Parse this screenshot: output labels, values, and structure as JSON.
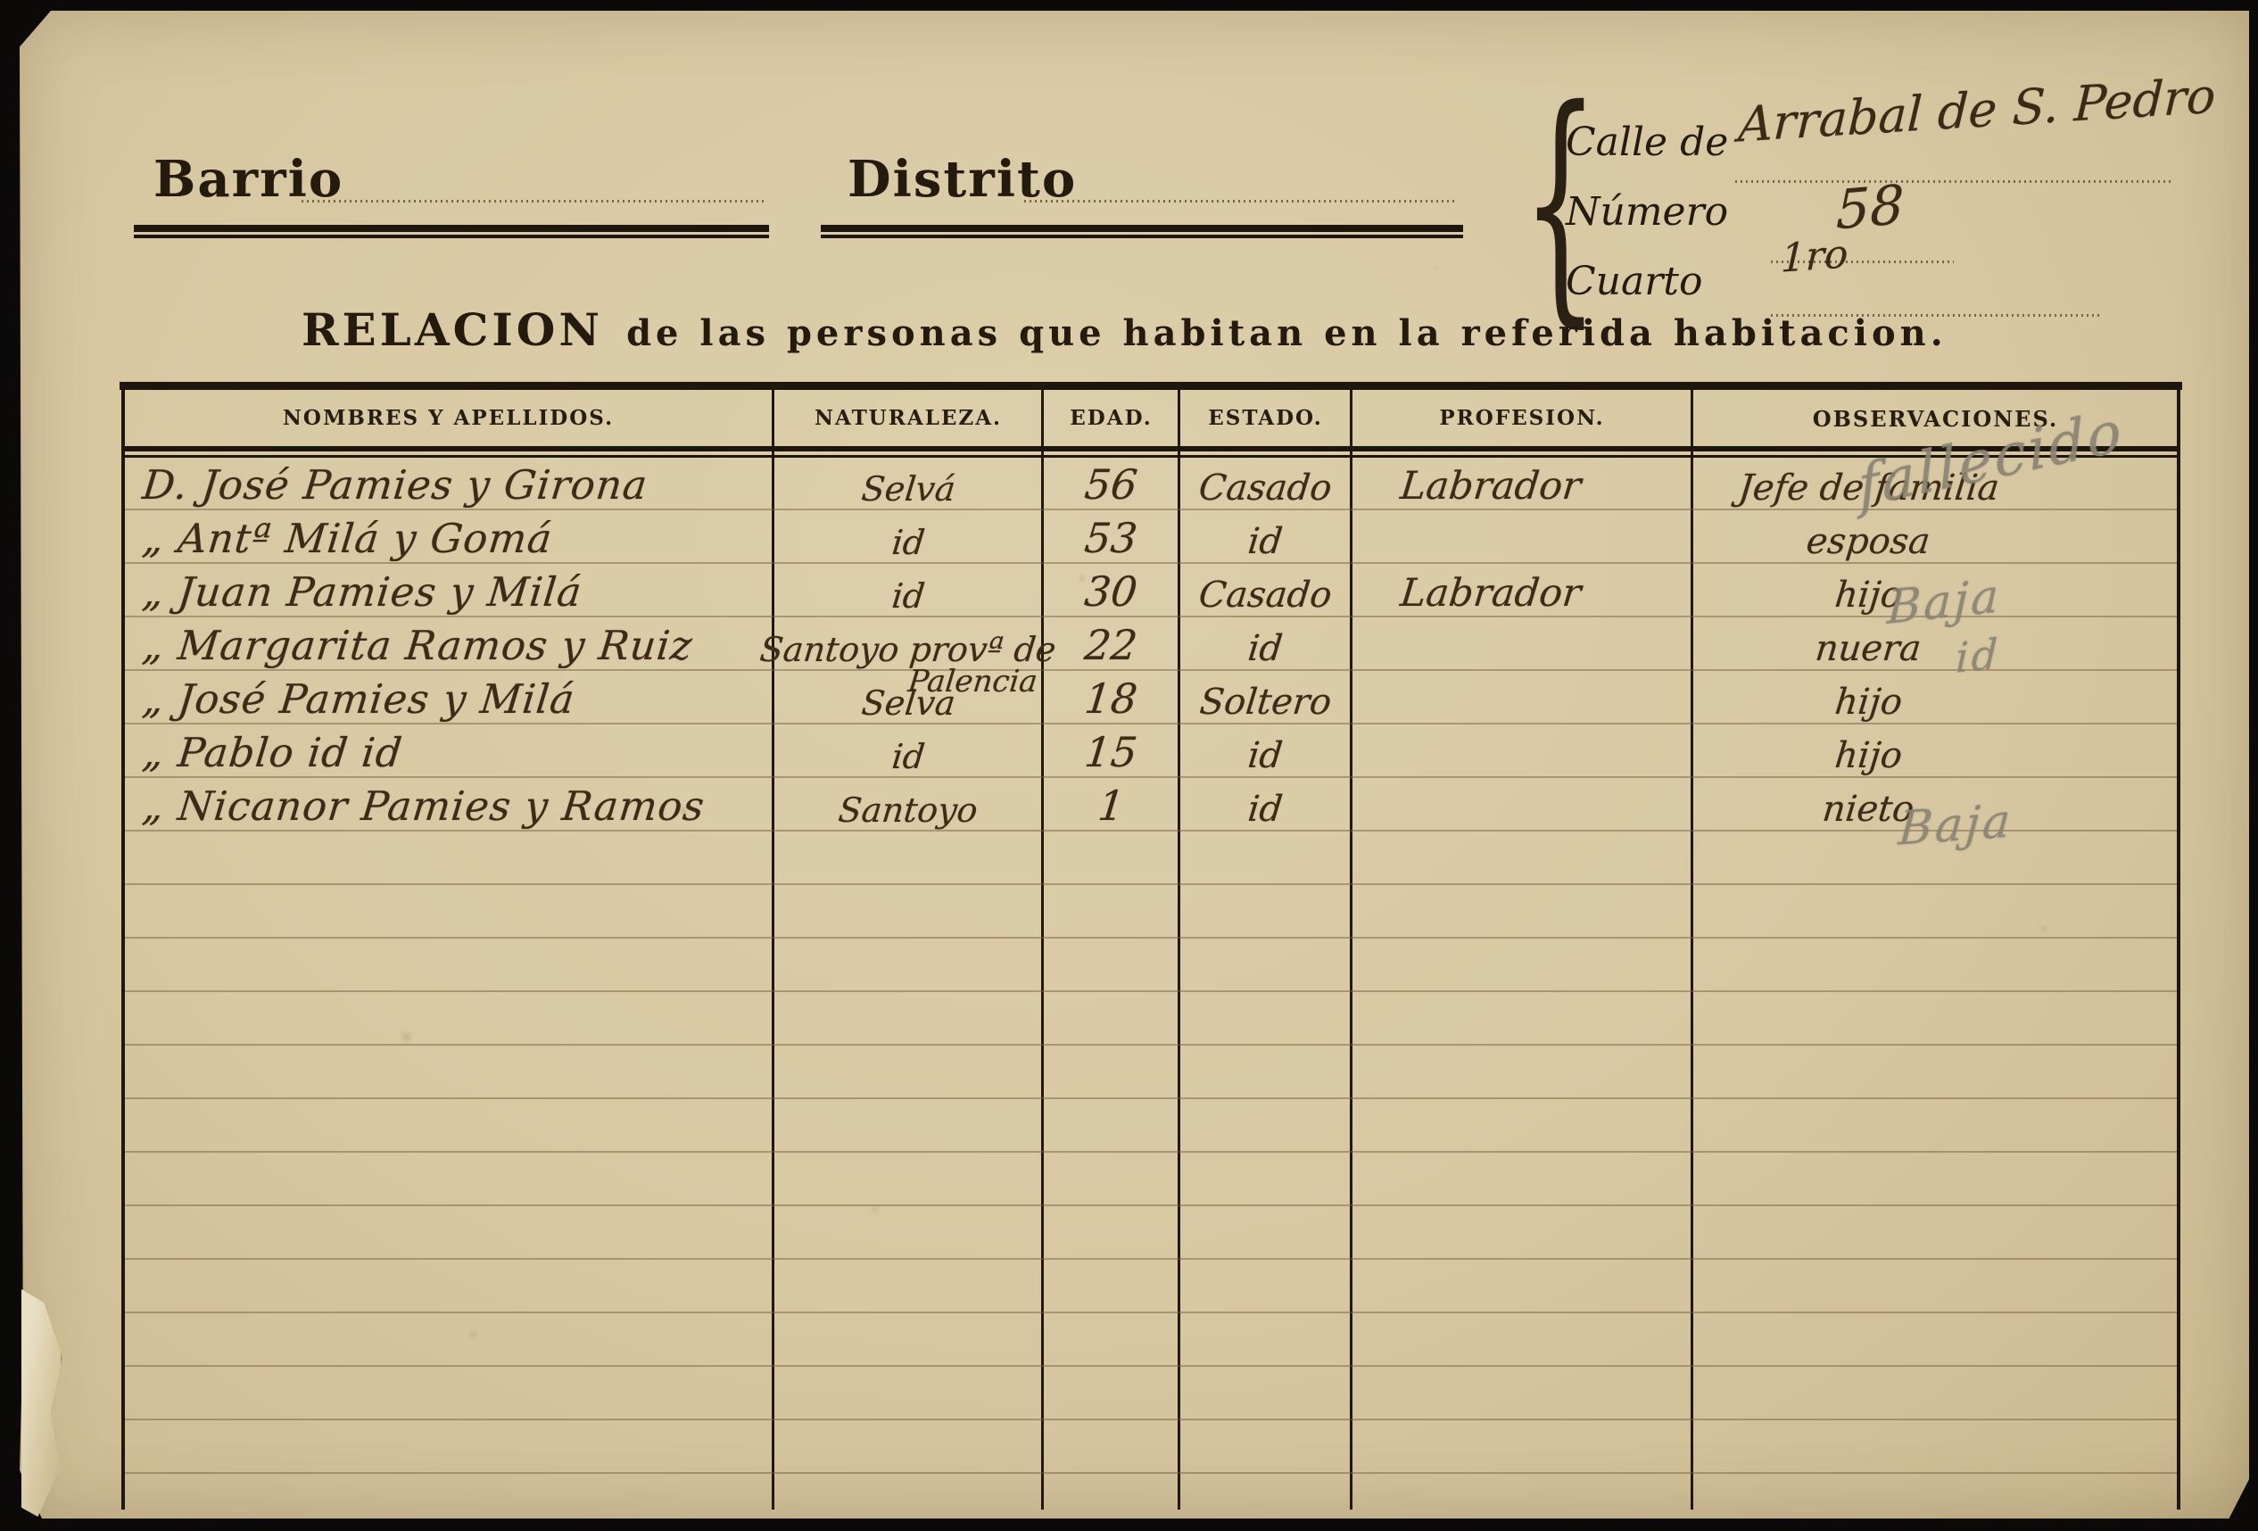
{
  "header": {
    "barrio_label": "Barrio",
    "distrito_label": "Distrito",
    "address": {
      "calle_label": "Calle de",
      "calle_value": "Arrabal de S. Pedro",
      "numero_label": "Número",
      "numero_value": "58",
      "cuarto_label": "Cuarto",
      "cuarto_value": "1ro"
    },
    "title_lead": "RELACION",
    "title_rest": "de las personas que habitan en la referida habitacion."
  },
  "table": {
    "headers": [
      "NOMBRES Y APELLIDOS.",
      "NATURALEZA.",
      "EDAD.",
      "ESTADO.",
      "PROFESION.",
      "OBSERVACIONES."
    ],
    "rows": [
      {
        "nombre": "D. José Pamies y Girona",
        "naturaleza": "Selvá",
        "edad": "56",
        "estado": "Casado",
        "profesion": "Labrador",
        "observaciones": "Jefe de familia",
        "anotacion": "fallecido"
      },
      {
        "nombre": "„  Antª Milá y Gomá",
        "naturaleza": "id",
        "edad": "53",
        "estado": "id",
        "profesion": "",
        "observaciones": "esposa",
        "anotacion": ""
      },
      {
        "nombre": "„  Juan Pamies y Milá",
        "naturaleza": "id",
        "edad": "30",
        "estado": "Casado",
        "profesion": "Labrador",
        "observaciones": "hijo",
        "anotacion": "Baja"
      },
      {
        "nombre": "„  Margarita Ramos y Ruiz",
        "naturaleza": "Santoyo provª de",
        "naturaleza2": "Palencia",
        "edad": "22",
        "estado": "id",
        "profesion": "",
        "observaciones": "nuera",
        "anotacion": "id"
      },
      {
        "nombre": "„  José Pamies y Milá",
        "naturaleza": "Selva",
        "edad": "18",
        "estado": "Soltero",
        "profesion": "",
        "observaciones": "hijo",
        "anotacion": ""
      },
      {
        "nombre": "„  Pablo id      id",
        "naturaleza": "id",
        "edad": "15",
        "estado": "id",
        "profesion": "",
        "observaciones": "hijo",
        "anotacion": ""
      },
      {
        "nombre": "„  Nicanor Pamies y Ramos",
        "naturaleza": "Santoyo",
        "edad": "1",
        "estado": "id",
        "profesion": "",
        "observaciones": "nieto",
        "anotacion": "Baja"
      }
    ]
  },
  "colors": {
    "paper": "#d7c8a2",
    "ink": "#3e2b17",
    "pencil": "#8b8475",
    "print": "#241b0e",
    "rule_line": "#7a613e",
    "background": "#0b0a08"
  }
}
